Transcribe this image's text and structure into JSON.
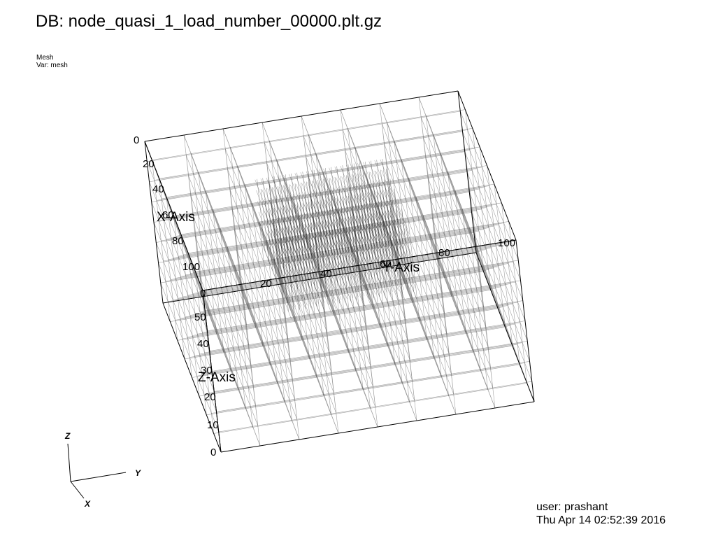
{
  "header": {
    "db_title": "DB: node_quasi_1_load_number_00000.plt.gz"
  },
  "plot_info": {
    "plot_type": "Mesh",
    "variable": "Var: mesh"
  },
  "axes": {
    "x_axis": {
      "title": "X-Axis",
      "ticks": [
        "0",
        "20",
        "40",
        "60",
        "80",
        "100"
      ]
    },
    "y_axis": {
      "title": "Y-Axis",
      "ticks": [
        "0",
        "20",
        "40",
        "60",
        "80",
        "100"
      ]
    },
    "z_axis": {
      "title": "Z-Axis",
      "ticks": [
        "0",
        "10",
        "20",
        "30",
        "40",
        "50"
      ]
    }
  },
  "triad": {
    "x_label": "X",
    "y_label": "Y",
    "z_label": "Z"
  },
  "footer": {
    "user": "user: prashant",
    "timestamp": "Thu Apr 14 02:52:39 2016"
  },
  "colors": {
    "background": "#ffffff",
    "mesh_line": "#555555",
    "axis_line": "#000000"
  }
}
